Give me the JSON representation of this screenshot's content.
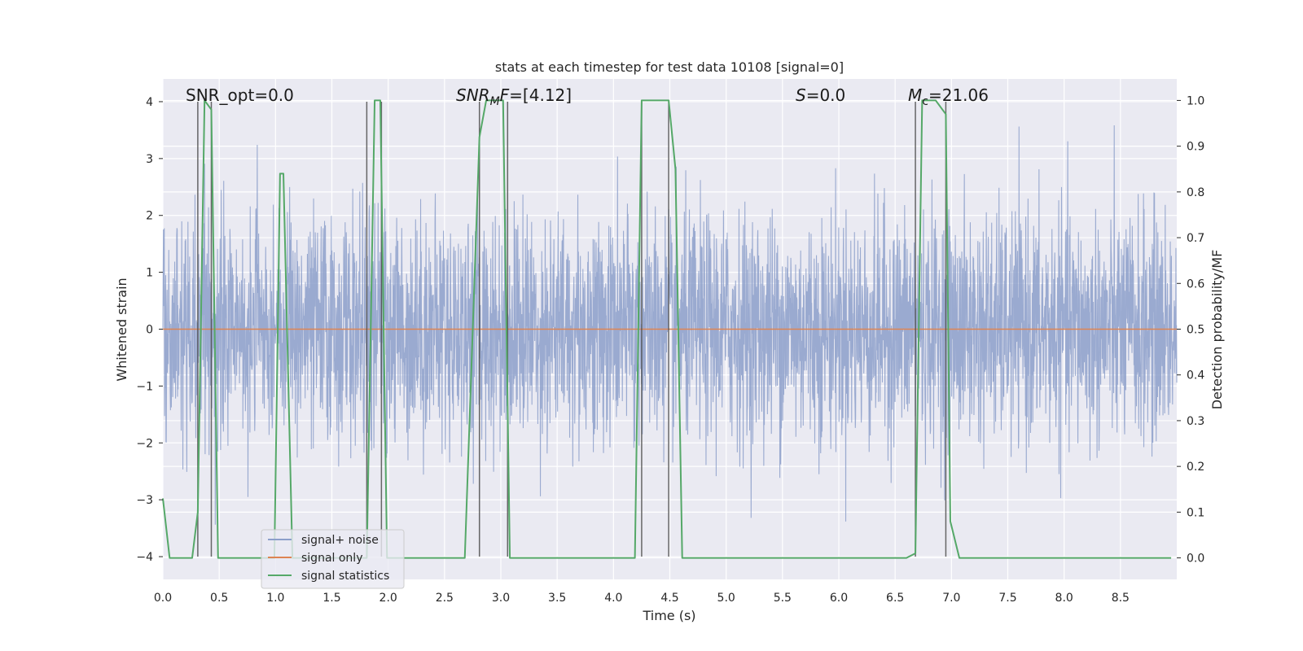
{
  "chart_data": {
    "type": "line",
    "title": "stats at each timestep for test data 10108 [signal=0]",
    "xlabel": "Time (s)",
    "ylabel": "Whitened strain",
    "y2label": "Detection probability/MF",
    "xlim": [
      0,
      9.0
    ],
    "ylim": [
      -4.4,
      4.4
    ],
    "y2lim": [
      -0.047,
      1.047
    ],
    "x_ticks": [
      "0.0",
      "0.5",
      "1.0",
      "1.5",
      "2.0",
      "2.5",
      "3.0",
      "3.5",
      "4.0",
      "4.5",
      "5.0",
      "5.5",
      "6.0",
      "6.5",
      "7.0",
      "7.5",
      "8.0",
      "8.5"
    ],
    "y_ticks": [
      "4",
      "3",
      "2",
      "1",
      "0",
      "−1",
      "−2",
      "−3",
      "−4"
    ],
    "y2_ticks": [
      "1.0",
      "0.9",
      "0.8",
      "0.7",
      "0.6",
      "0.5",
      "0.4",
      "0.3",
      "0.2",
      "0.1",
      "0.0"
    ],
    "grid": true,
    "legend_position": "lower-left",
    "annotations": [
      {
        "label": "SNR_opt=0.0",
        "x_data": 0.2
      },
      {
        "label": "SNR_MF=[4.12]",
        "x_data": 2.6
      },
      {
        "label": "S=0.0",
        "x_data": 5.6
      },
      {
        "label": "M_c=21.06",
        "x_data": 6.6
      }
    ],
    "detection_windows": [
      [
        0.31,
        0.43
      ],
      [
        1.81,
        1.94
      ],
      [
        2.81,
        3.06
      ],
      [
        4.25,
        4.49
      ],
      [
        6.68,
        6.95
      ]
    ],
    "series": [
      {
        "name": "signal+ noise",
        "axis": "left",
        "color": "#8c9fca",
        "description": "whitened noise, approx. Gaussian, sd ~1.0, peaks up to about ±3.8",
        "envelope_sd": 1.0
      },
      {
        "name": "signal only",
        "axis": "left",
        "color": "#dd8452",
        "x": [
          0.0,
          9.0
        ],
        "y": [
          0.0,
          0.0
        ]
      },
      {
        "name": "signal statistics",
        "axis": "right",
        "color": "#55a868",
        "x": [
          0.0,
          0.06,
          0.26,
          0.31,
          0.37,
          0.43,
          0.49,
          0.55,
          0.99,
          1.04,
          1.07,
          1.15,
          1.18,
          1.24,
          1.4,
          1.81,
          1.88,
          1.93,
          1.99,
          2.04,
          2.68,
          2.81,
          2.87,
          3.02,
          3.08,
          3.14,
          3.2,
          4.19,
          4.25,
          4.31,
          4.49,
          4.55,
          4.61,
          6.6,
          6.68,
          6.74,
          6.86,
          6.95,
          6.99,
          7.07,
          8.95
        ],
        "y": [
          0.13,
          0.0,
          0.0,
          0.1,
          1.0,
          0.98,
          0.0,
          0.0,
          0.0,
          0.84,
          0.84,
          0.0,
          0.0,
          0.0,
          0.0,
          0.0,
          1.0,
          1.0,
          0.0,
          0.0,
          0.0,
          0.92,
          1.0,
          1.0,
          0.0,
          0.0,
          0.0,
          0.0,
          1.0,
          1.0,
          1.0,
          0.85,
          0.0,
          0.0,
          0.01,
          1.0,
          1.0,
          0.97,
          0.08,
          0.0,
          0.0
        ]
      }
    ]
  }
}
